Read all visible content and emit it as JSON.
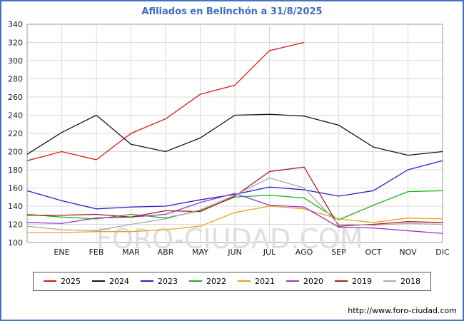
{
  "title": "Afiliados en Belinchón a 31/8/2025",
  "watermark": "FORO-CIUDAD.COM",
  "footer": {
    "url": "http://www.foro-ciudad.com"
  },
  "colors": {
    "border": "#4472c4",
    "title": "#3b6cc4",
    "grid_minor": "#d9d9d9",
    "grid_edge": "#999999",
    "tick_text": "#1a1a1a",
    "watermark": "#dedede"
  },
  "chart_data": {
    "type": "line",
    "title": "Afiliados en Belinchón a 31/8/2025",
    "xlabel": "",
    "ylabel": "",
    "ylim": [
      100,
      340
    ],
    "ytick_step": 20,
    "grid": true,
    "legend_position": "bottom",
    "categories": [
      "ENE",
      "FEB",
      "MAR",
      "ABR",
      "MAY",
      "JUN",
      "JUL",
      "AGO",
      "SEP",
      "OCT",
      "NOV",
      "DIC"
    ],
    "layout_note": "first value of each series is plotted on the left axis; month ticks follow at equal intervals",
    "series": [
      {
        "name": "2025",
        "color": "#e11212",
        "values": [
          190,
          200,
          191,
          220,
          236,
          263,
          273,
          311,
          320
        ]
      },
      {
        "name": "2024",
        "color": "#141414",
        "values": [
          197,
          221,
          240,
          208,
          200,
          215,
          240,
          241,
          239,
          229,
          205,
          196,
          200
        ]
      },
      {
        "name": "2023",
        "color": "#2424c8",
        "values": [
          157,
          146,
          137,
          139,
          140,
          147,
          153,
          161,
          158,
          151,
          157,
          180,
          190
        ]
      },
      {
        "name": "2022",
        "color": "#1eb41e",
        "values": [
          131,
          128,
          126,
          131,
          127,
          135,
          150,
          152,
          149,
          125,
          141,
          156,
          157
        ]
      },
      {
        "name": "2021",
        "color": "#e6a417",
        "values": [
          111,
          111,
          112,
          112,
          114,
          118,
          133,
          140,
          137,
          126,
          122,
          127,
          126
        ]
      },
      {
        "name": "2020",
        "color": "#9933cc",
        "values": [
          122,
          121,
          127,
          128,
          131,
          144,
          154,
          141,
          139,
          117,
          116,
          113,
          110
        ]
      },
      {
        "name": "2019",
        "color": "#a52222",
        "values": [
          130,
          130,
          131,
          128,
          135,
          134,
          151,
          178,
          183,
          118,
          120,
          123,
          122
        ]
      },
      {
        "name": "2018",
        "color": "#aaaaaa",
        "values": [
          118,
          114,
          113,
          120,
          126,
          136,
          152,
          171,
          160,
          120,
          119,
          121,
          120
        ]
      }
    ]
  }
}
